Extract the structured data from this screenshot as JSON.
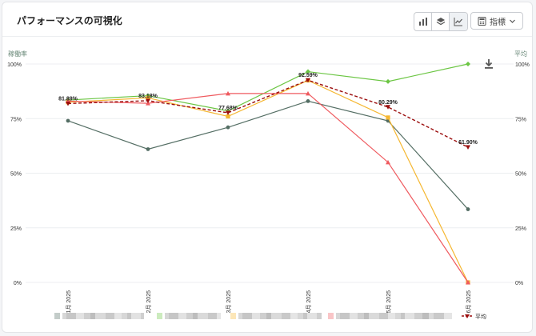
{
  "header": {
    "title": "パフォーマンスの可視化",
    "metric_label": "指標",
    "view_buttons": [
      {
        "icon": "bar-chart-icon",
        "active": false
      },
      {
        "icon": "stack-icon",
        "active": false
      },
      {
        "icon": "line-chart-icon",
        "active": true
      }
    ]
  },
  "chart_data": {
    "type": "line",
    "ylabel_left": "稼働率",
    "ylabel_right": "平均",
    "y_ticks": [
      "100%",
      "75%",
      "50%",
      "25%",
      "0%"
    ],
    "ylim": [
      0,
      100
    ],
    "categories": [
      "1月 2025",
      "2月 2025",
      "3月 2025",
      "4月 2025",
      "5月 2025",
      "6月 2025"
    ],
    "colors": {
      "dark": "#546e64",
      "green": "#6cc644",
      "yellow": "#f5b731",
      "red": "#ef5a5f",
      "avg": "#9b0d0d"
    },
    "series": [
      {
        "color": "#546e64",
        "marker": "circle",
        "values": [
          74,
          61,
          71,
          83,
          74,
          33.5
        ]
      },
      {
        "color": "#6cc644",
        "marker": "diamond",
        "values": [
          83.5,
          85.5,
          78.5,
          96.5,
          92,
          100
        ]
      },
      {
        "color": "#f5b731",
        "marker": "square",
        "values": [
          82.5,
          84.5,
          76,
          92.5,
          75.5,
          0
        ]
      },
      {
        "color": "#ef5a5f",
        "marker": "triangle",
        "values": [
          83,
          82,
          86.5,
          86.5,
          55,
          0
        ]
      },
      {
        "name": "平均",
        "color": "#9b0d0d",
        "marker": "triangle-down",
        "dashed": true,
        "values": [
          81.89,
          83.18,
          77.68,
          92.59,
          80.29,
          61.9
        ]
      }
    ],
    "avg_labels": [
      "81.89%",
      "83.18%",
      "77.68%",
      "92.59%",
      "80.29%",
      "61.90%"
    ],
    "legend_position": "bottom",
    "legend_avg_label": "平均",
    "grid": true
  }
}
